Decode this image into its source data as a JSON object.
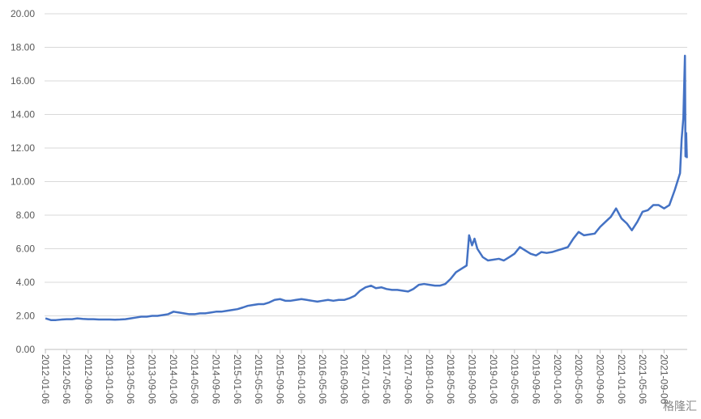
{
  "chart_data": {
    "type": "line",
    "x": [
      "2012-01-06",
      "2012-02-06",
      "2012-03-06",
      "2012-04-06",
      "2012-05-06",
      "2012-06-06",
      "2012-07-06",
      "2012-08-06",
      "2012-09-06",
      "2012-10-06",
      "2012-11-06",
      "2012-12-06",
      "2013-01-06",
      "2013-02-06",
      "2013-03-06",
      "2013-04-06",
      "2013-05-06",
      "2013-06-06",
      "2013-07-06",
      "2013-08-06",
      "2013-09-06",
      "2013-10-06",
      "2013-11-06",
      "2013-12-06",
      "2014-01-06",
      "2014-02-06",
      "2014-03-06",
      "2014-04-06",
      "2014-05-06",
      "2014-06-06",
      "2014-07-06",
      "2014-08-06",
      "2014-09-06",
      "2014-10-06",
      "2014-11-06",
      "2014-12-06",
      "2015-01-06",
      "2015-02-06",
      "2015-03-06",
      "2015-04-06",
      "2015-05-06",
      "2015-06-06",
      "2015-07-06",
      "2015-08-06",
      "2015-09-06",
      "2015-10-06",
      "2015-11-06",
      "2015-12-06",
      "2016-01-06",
      "2016-02-06",
      "2016-03-06",
      "2016-04-06",
      "2016-05-06",
      "2016-06-06",
      "2016-07-06",
      "2016-08-06",
      "2016-09-06",
      "2016-10-06",
      "2016-11-06",
      "2016-12-06",
      "2017-01-06",
      "2017-02-06",
      "2017-03-06",
      "2017-04-06",
      "2017-05-06",
      "2017-06-06",
      "2017-07-06",
      "2017-08-06",
      "2017-09-06",
      "2017-10-06",
      "2017-11-06",
      "2017-12-06",
      "2018-01-06",
      "2018-02-06",
      "2018-03-06",
      "2018-04-06",
      "2018-05-06",
      "2018-06-06",
      "2018-07-06",
      "2018-08-06",
      "2018-08-20",
      "2018-09-06",
      "2018-09-20",
      "2018-10-06",
      "2018-11-06",
      "2018-12-06",
      "2019-01-06",
      "2019-02-06",
      "2019-03-06",
      "2019-04-06",
      "2019-05-06",
      "2019-06-06",
      "2019-07-06",
      "2019-08-06",
      "2019-09-06",
      "2019-10-06",
      "2019-11-06",
      "2019-12-06",
      "2020-01-06",
      "2020-02-06",
      "2020-03-06",
      "2020-04-06",
      "2020-05-06",
      "2020-06-06",
      "2020-07-06",
      "2020-08-06",
      "2020-09-06",
      "2020-10-06",
      "2020-11-06",
      "2020-12-06",
      "2021-01-06",
      "2021-02-06",
      "2021-03-06",
      "2021-04-06",
      "2021-05-06",
      "2021-06-06",
      "2021-07-06",
      "2021-08-06",
      "2021-09-06",
      "2021-10-06",
      "2021-11-06",
      "2021-12-06",
      "2021-12-15",
      "2021-12-25",
      "2022-01-03",
      "2022-01-06",
      "2022-01-10",
      "2022-01-14"
    ],
    "values": [
      1.85,
      1.75,
      1.75,
      1.78,
      1.8,
      1.8,
      1.85,
      1.82,
      1.8,
      1.8,
      1.78,
      1.78,
      1.78,
      1.77,
      1.78,
      1.8,
      1.85,
      1.9,
      1.95,
      1.95,
      2.0,
      2.0,
      2.05,
      2.1,
      2.25,
      2.2,
      2.15,
      2.1,
      2.1,
      2.15,
      2.15,
      2.2,
      2.25,
      2.25,
      2.3,
      2.35,
      2.4,
      2.5,
      2.6,
      2.65,
      2.7,
      2.7,
      2.8,
      2.95,
      3.0,
      2.9,
      2.9,
      2.95,
      3.0,
      2.95,
      2.9,
      2.85,
      2.9,
      2.95,
      2.9,
      2.95,
      2.95,
      3.05,
      3.2,
      3.5,
      3.7,
      3.8,
      3.65,
      3.7,
      3.6,
      3.55,
      3.55,
      3.5,
      3.45,
      3.6,
      3.85,
      3.9,
      3.85,
      3.8,
      3.8,
      3.9,
      4.2,
      4.6,
      4.8,
      5.0,
      6.8,
      6.2,
      6.6,
      6.0,
      5.5,
      5.3,
      5.35,
      5.4,
      5.3,
      5.5,
      5.7,
      6.1,
      5.9,
      5.7,
      5.6,
      5.8,
      5.75,
      5.8,
      5.9,
      6.0,
      6.1,
      6.6,
      7.0,
      6.8,
      6.85,
      6.9,
      7.3,
      7.6,
      7.9,
      8.4,
      7.8,
      7.5,
      7.1,
      7.6,
      8.2,
      8.3,
      8.6,
      8.6,
      8.4,
      8.6,
      9.5,
      10.5,
      12.5,
      13.8,
      17.5,
      11.5,
      12.9,
      11.4
    ],
    "color": "#4472c4",
    "xlim": [
      "2012-01-01",
      "2022-01-16"
    ],
    "xticks": [
      "2012-01-06",
      "2012-05-06",
      "2012-09-06",
      "2013-01-06",
      "2013-05-06",
      "2013-09-06",
      "2014-01-06",
      "2014-05-06",
      "2014-09-06",
      "2015-01-06",
      "2015-05-06",
      "2015-09-06",
      "2016-01-06",
      "2016-05-06",
      "2016-09-06",
      "2017-01-06",
      "2017-05-06",
      "2017-09-06",
      "2018-01-06",
      "2018-05-06",
      "2018-09-06",
      "2019-01-06",
      "2019-05-06",
      "2019-09-06",
      "2020-01-06",
      "2020-05-06",
      "2020-09-06",
      "2021-01-06",
      "2021-05-06",
      "2021-09-06"
    ],
    "ylim": [
      0,
      20
    ],
    "yticks": [
      {
        "value": 0,
        "label": "0.00"
      },
      {
        "value": 2,
        "label": "2.00"
      },
      {
        "value": 4,
        "label": "4.00"
      },
      {
        "value": 6,
        "label": "6.00"
      },
      {
        "value": 8,
        "label": "8.00"
      },
      {
        "value": 10,
        "label": "10.00"
      },
      {
        "value": 12,
        "label": "12.00"
      },
      {
        "value": 14,
        "label": "14.00"
      },
      {
        "value": 16,
        "label": "16.00"
      },
      {
        "value": 18,
        "label": "18.00"
      },
      {
        "value": 20,
        "label": "20.00"
      }
    ],
    "grid": true,
    "watermark": "格隆汇"
  }
}
